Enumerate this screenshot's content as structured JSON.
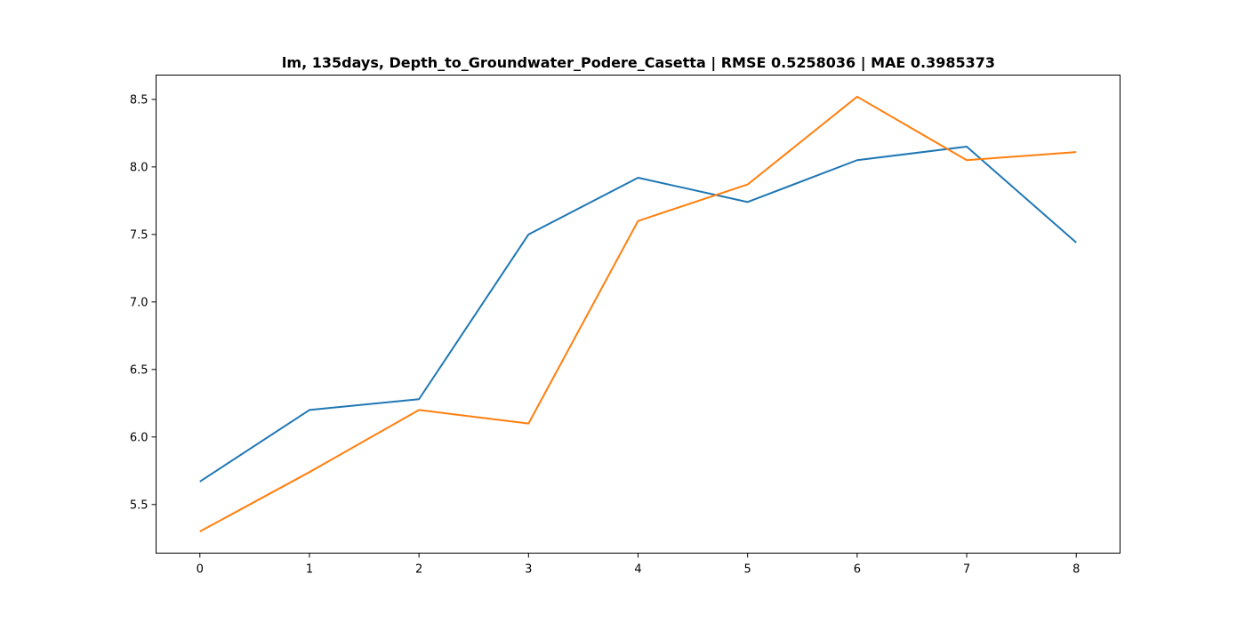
{
  "chart_data": {
    "type": "line",
    "title": "lm, 135days, Depth_to_Groundwater_Podere_Casetta | RMSE 0.5258036 | MAE 0.3985373",
    "xlabel": "",
    "ylabel": "",
    "x": [
      0,
      1,
      2,
      3,
      4,
      5,
      6,
      7,
      8
    ],
    "xticks": [
      0,
      1,
      2,
      3,
      4,
      5,
      6,
      7,
      8
    ],
    "xtick_labels": [
      "0",
      "1",
      "2",
      "3",
      "4",
      "5",
      "6",
      "7",
      "8"
    ],
    "xlim": [
      -0.4,
      8.4
    ],
    "yticks": [
      5.5,
      6.0,
      6.5,
      7.0,
      7.5,
      8.0,
      8.5
    ],
    "ytick_labels": [
      "5.5",
      "6.0",
      "6.5",
      "7.0",
      "7.5",
      "8.0",
      "8.5"
    ],
    "ylim": [
      5.14,
      8.68
    ],
    "grid": false,
    "legend": "none",
    "series": [
      {
        "color": "#1f77b4",
        "values": [
          5.67,
          6.2,
          6.28,
          7.5,
          7.92,
          7.74,
          8.05,
          8.15,
          7.44
        ]
      },
      {
        "color": "#ff7f0e",
        "values": [
          5.3,
          5.74,
          6.2,
          6.1,
          7.6,
          7.87,
          8.52,
          8.05,
          8.11
        ]
      }
    ]
  }
}
